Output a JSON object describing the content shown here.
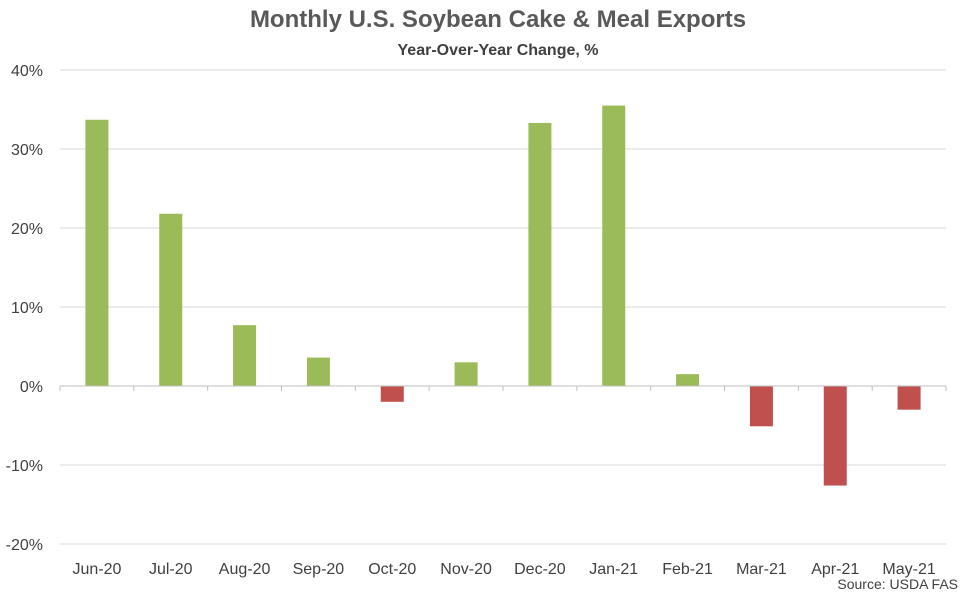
{
  "chart_data": {
    "type": "bar",
    "title": "Monthly U.S. Soybean Cake & Meal Exports",
    "subtitle": "Year-Over-Year Change, %",
    "source": "Source: USDA FAS",
    "categories": [
      "Jun-20",
      "Jul-20",
      "Aug-20",
      "Sep-20",
      "Oct-20",
      "Nov-20",
      "Dec-20",
      "Jan-21",
      "Feb-21",
      "Mar-21",
      "Apr-21",
      "May-21"
    ],
    "values": [
      33.7,
      21.8,
      7.7,
      3.6,
      -2.0,
      3.0,
      33.3,
      35.5,
      1.5,
      -5.1,
      -12.6,
      -3.0
    ],
    "ylim": [
      -20,
      40
    ],
    "yticks": [
      -20,
      -10,
      0,
      10,
      20,
      30,
      40
    ],
    "ytick_labels": [
      "-20%",
      "-10%",
      "0%",
      "10%",
      "20%",
      "30%",
      "40%"
    ],
    "grid": true,
    "colors": {
      "positive": "#9BBB59",
      "negative": "#C0504D",
      "grid": "#D9D9D9",
      "axis": "#BFBFBF"
    }
  }
}
